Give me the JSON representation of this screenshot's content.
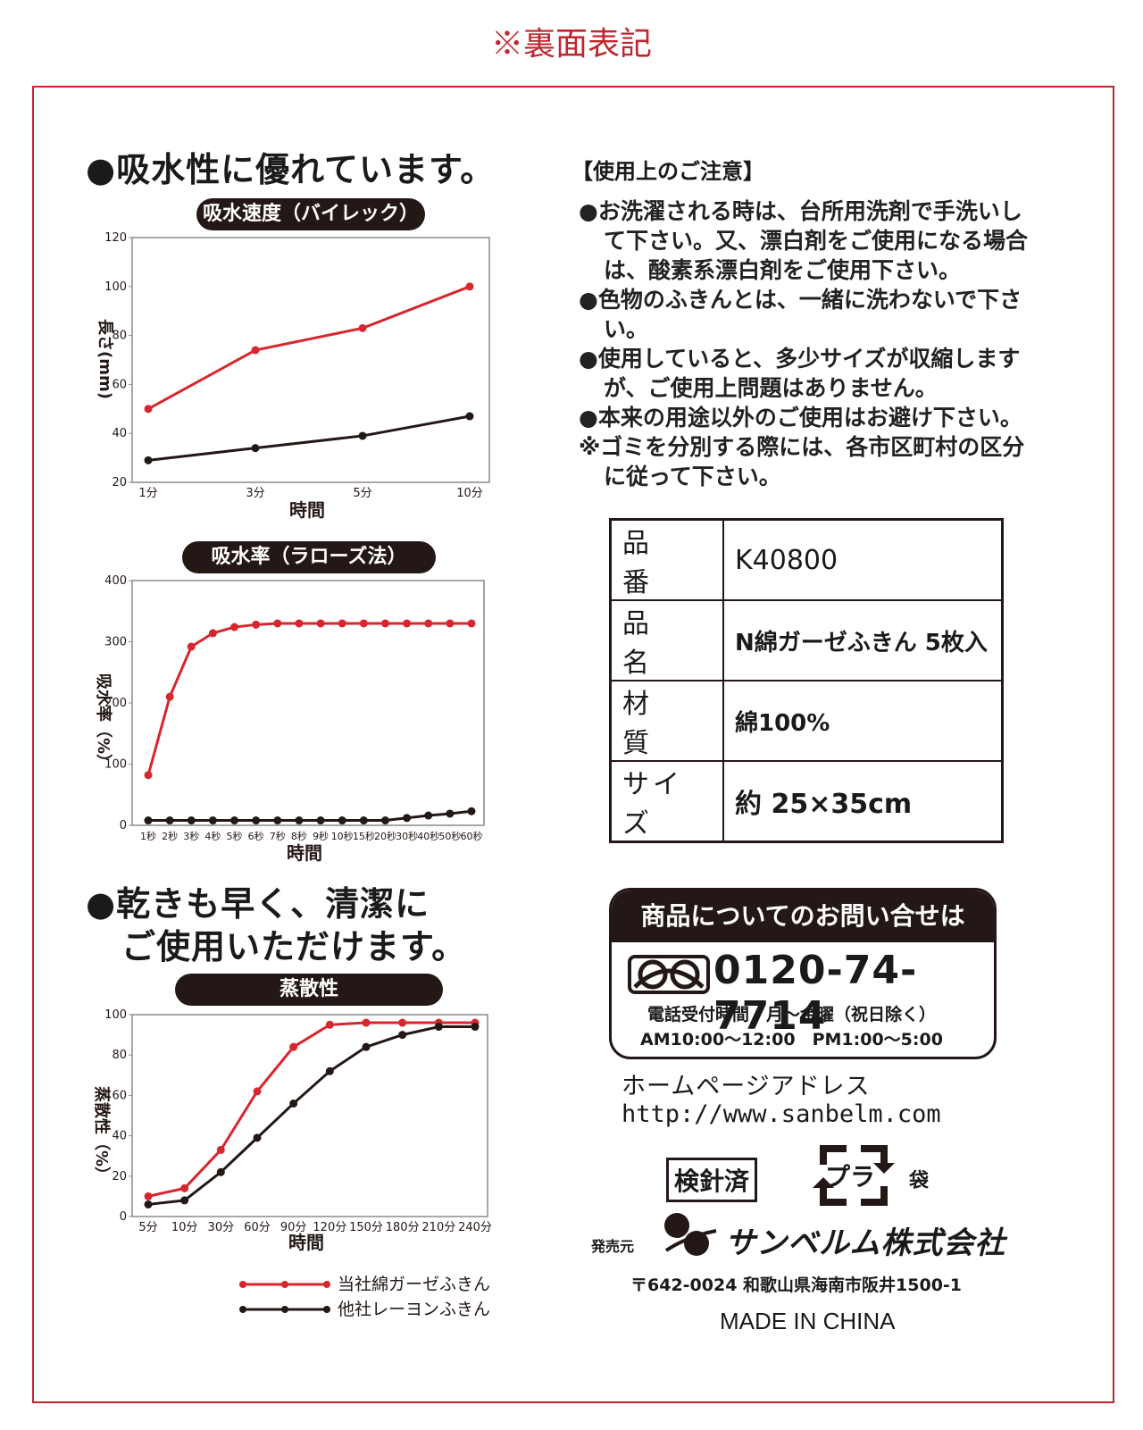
{
  "top_note": "※裏面表記",
  "left": {
    "heading1": "●吸水性に優れています。",
    "heading2_line1": "●乾きも早く、清潔に",
    "heading2_line2": "ご使用いただけます。"
  },
  "legend": [
    "当社綿ガーゼふきん",
    "他社レーヨンふきん"
  ],
  "chart_data": [
    {
      "type": "line",
      "title": "吸水速度（バイレック）",
      "ylabel": "長さ(mm)",
      "xlabel": "時間",
      "categories": [
        "1分",
        "3分",
        "5分",
        "10分"
      ],
      "ylim": [
        20,
        120
      ],
      "yticks": [
        20,
        40,
        60,
        80,
        100,
        120
      ],
      "series": [
        {
          "name": "当社綿ガーゼふきん",
          "color": "#d7262e",
          "values": [
            50,
            74,
            83,
            100
          ]
        },
        {
          "name": "他社レーヨンふきん",
          "color": "#231815",
          "values": [
            29,
            34,
            39,
            47
          ]
        }
      ]
    },
    {
      "type": "line",
      "title": "吸水率（ラローズ法）",
      "ylabel": "吸水率（%）",
      "xlabel": "時間",
      "categories": [
        "1秒",
        "2秒",
        "3秒",
        "4秒",
        "5秒",
        "6秒",
        "7秒",
        "8秒",
        "9秒",
        "10秒",
        "15秒",
        "20秒",
        "30秒",
        "40秒",
        "50秒",
        "60秒"
      ],
      "ylim": [
        0,
        400
      ],
      "yticks": [
        0,
        100,
        200,
        300,
        400
      ],
      "series": [
        {
          "name": "当社綿ガーゼふきん",
          "color": "#d7262e",
          "values": [
            82,
            210,
            292,
            314,
            324,
            328,
            330,
            330,
            330,
            330,
            330,
            330,
            330,
            330,
            330,
            330
          ]
        },
        {
          "name": "他社レーヨンふきん",
          "color": "#231815",
          "values": [
            8,
            8,
            8,
            8,
            8,
            8,
            8,
            8,
            8,
            8,
            8,
            8,
            12,
            16,
            19,
            23
          ]
        }
      ]
    },
    {
      "type": "line",
      "title": "蒸散性",
      "ylabel": "蒸散性（%）",
      "xlabel": "時間",
      "categories": [
        "5分",
        "10分",
        "30分",
        "60分",
        "90分",
        "120分",
        "150分",
        "180分",
        "210分",
        "240分"
      ],
      "ylim": [
        0,
        100
      ],
      "yticks": [
        0,
        20,
        40,
        60,
        80,
        100
      ],
      "series": [
        {
          "name": "当社綿ガーゼふきん",
          "color": "#d7262e",
          "values": [
            10,
            14,
            33,
            62,
            84,
            95,
            96,
            96,
            96,
            96
          ]
        },
        {
          "name": "他社レーヨンふきん",
          "color": "#231815",
          "values": [
            6,
            8,
            22,
            39,
            56,
            72,
            84,
            90,
            94,
            94
          ]
        }
      ]
    }
  ],
  "cautions": {
    "title": "【使用上のご注意】",
    "items": [
      "●お洗濯される時は、台所用洗剤で手洗いして下さい。又、漂白剤をご使用になる場合は、酸素系漂白剤をご使用下さい。",
      "●色物のふきんとは、一緒に洗わないで下さい。",
      "●使用していると、多少サイズが収縮しますが、ご使用上問題はありません。",
      "●本来の用途以外のご使用はお避け下さい。",
      "※ゴミを分別する際には、各市区町村の区分に従って下さい。"
    ]
  },
  "spec": [
    {
      "key": "品　番",
      "value": "K40800"
    },
    {
      "key": "品　名",
      "value": "N綿ガーゼふきん 5枚入"
    },
    {
      "key": "材　質",
      "value": "綿100%"
    },
    {
      "key": "サイズ",
      "value": "約 25×35cm"
    }
  ],
  "contact": {
    "head": "商品についてのお問い合せは",
    "phone": "0120-74-7714",
    "hours1": "電話受付時間　月～金曜（祝日除く）",
    "hours2": "AM10:00～12:00　PM1:00～5:00"
  },
  "homepage": {
    "label": "ホームページアドレス",
    "url": "http://www.sanbelm.com"
  },
  "marks": {
    "inspected": "検針済",
    "pla": "プラ",
    "bag": "袋"
  },
  "seller": {
    "label": "発売元",
    "company": "サンベルム株式会社",
    "address": "〒642-0024 和歌山県海南市阪井1500-1"
  },
  "made_in": "MADE IN CHINA"
}
